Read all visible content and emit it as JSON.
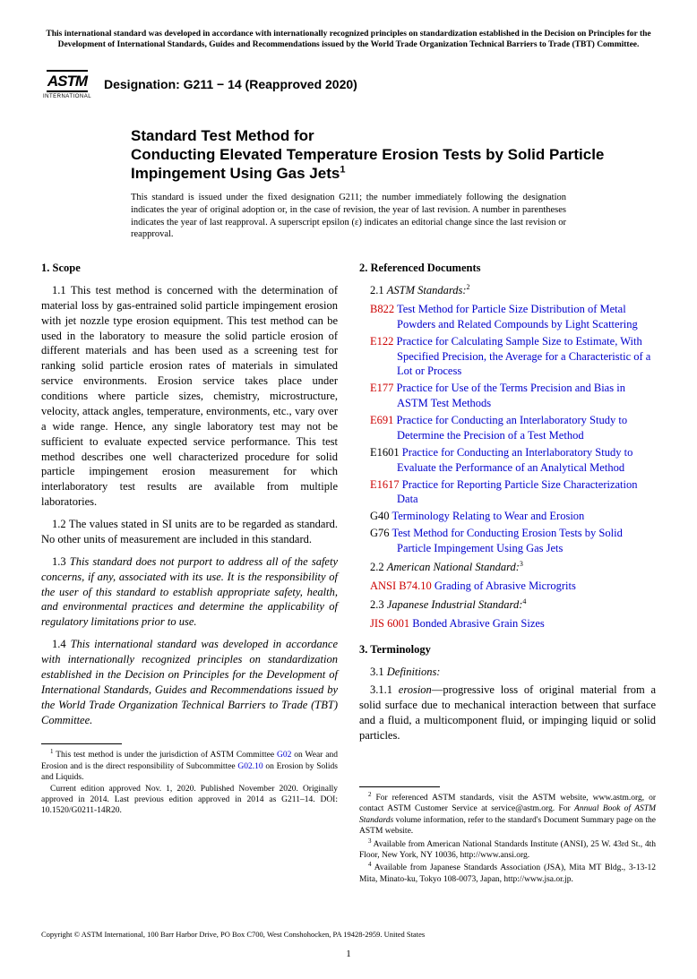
{
  "top_statement": "This international standard was developed in accordance with internationally recognized principles on standardization established in the Decision on Principles for the Development of International Standards, Guides and Recommendations issued by the World Trade Organization Technical Barriers to Trade (TBT) Committee.",
  "logo": {
    "top": "ASTM",
    "bottom": "INTERNATIONAL"
  },
  "designation": "Designation: G211 − 14 (Reapproved 2020)",
  "title_lead": "Standard Test Method for",
  "title_main": "Conducting Elevated Temperature Erosion Tests by Solid Particle Impingement Using Gas Jets",
  "title_super": "1",
  "issue_note": "This standard is issued under the fixed designation G211; the number immediately following the designation indicates the year of original adoption or, in the case of revision, the year of last revision. A number in parentheses indicates the year of last reapproval. A superscript epsilon (ε) indicates an editorial change since the last revision or reapproval.",
  "sections": {
    "scope": {
      "heading": "1. Scope",
      "p1": "1.1 This test method is concerned with the determination of material loss by gas-entrained solid particle impingement erosion with jet nozzle type erosion equipment. This test method can be used in the laboratory to measure the solid particle erosion of different materials and has been used as a screening test for ranking solid particle erosion rates of materials in simulated service environments. Erosion service takes place under conditions where particle sizes, chemistry, microstructure, velocity, attack angles, temperature, environments, etc., vary over a wide range. Hence, any single laboratory test may not be sufficient to evaluate expected service performance. This test method describes one well characterized procedure for solid particle impingement erosion measurement for which interlaboratory test results are available from multiple laboratories.",
      "p2": "1.2 The values stated in SI units are to be regarded as standard. No other units of measurement are included in this standard.",
      "p3": "1.3 This standard does not purport to address all of the safety concerns, if any, associated with its use. It is the responsibility of the user of this standard to establish appropriate safety, health, and environmental practices and determine the applicability of regulatory limitations prior to use.",
      "p4": "1.4 This international standard was developed in accordance with internationally recognized principles on standardization established in the Decision on Principles for the Development of International Standards, Guides and Recommendations issued by the World Trade Organization Technical Barriers to Trade (TBT) Committee."
    },
    "refs": {
      "heading": "2. Referenced Documents",
      "sub21_num": "2.1 ",
      "sub21_label": "ASTM Standards:",
      "sub21_sup": "2",
      "items": [
        {
          "code": "B822",
          "code_color": "red",
          "text": "Test Method for Particle Size Distribution of Metal Powders and Related Compounds by Light Scattering"
        },
        {
          "code": "E122",
          "code_color": "red",
          "text": "Practice for Calculating Sample Size to Estimate, With Specified Precision, the Average for a Characteristic of a Lot or Process"
        },
        {
          "code": "E177",
          "code_color": "red",
          "text": "Practice for Use of the Terms Precision and Bias in ASTM Test Methods"
        },
        {
          "code": "E691",
          "code_color": "red",
          "text": "Practice for Conducting an Interlaboratory Study to Determine the Precision of a Test Method"
        },
        {
          "code": "E1601",
          "code_color": "black",
          "text": "Practice for Conducting an Interlaboratory Study to Evaluate the Performance of an Analytical Method"
        },
        {
          "code": "E1617",
          "code_color": "red",
          "text": "Practice for Reporting Particle Size Characterization Data"
        },
        {
          "code": "G40",
          "code_color": "black",
          "text": "Terminology Relating to Wear and Erosion"
        },
        {
          "code": "G76",
          "code_color": "black",
          "text": "Test Method for Conducting Erosion Tests by Solid Particle Impingement Using Gas Jets"
        }
      ],
      "sub22_num": "2.2 ",
      "sub22_label": "American National Standard:",
      "sub22_sup": "3",
      "ansi": {
        "code": "ANSI B74.10",
        "text": "Grading of Abrasive Microgrits"
      },
      "sub23_num": "2.3 ",
      "sub23_label": "Japanese Industrial Standard:",
      "sub23_sup": "4",
      "jis": {
        "code": "JIS 6001",
        "text": "Bonded Abrasive Grain Sizes"
      }
    },
    "term": {
      "heading": "3. Terminology",
      "sub31_num": "3.1 ",
      "sub31_label": "Definitions:",
      "def_num": "3.1.1 ",
      "def_term": "erosion",
      "def_body": "—progressive loss of original material from a solid surface due to mechanical interaction between that surface and a fluid, a multicomponent fluid, or impinging liquid or solid particles."
    }
  },
  "footnotes": {
    "left1_pre": " This test method is under the jurisdiction of ASTM Committee ",
    "left1_link1": "G02",
    "left1_mid": " on Wear and Erosion and is the direct responsibility of Subcommittee ",
    "left1_link2": "G02.10",
    "left1_post": " on Erosion by Solids and Liquids.",
    "left2": "Current edition approved Nov. 1, 2020. Published November 2020. Originally approved in 2014. Last previous edition approved in 2014 as G211–14. DOI: 10.1520/G0211-14R20.",
    "right2_pre": " For referenced ASTM standards, visit the ASTM website, www.astm.org, or contact ASTM Customer Service at service@astm.org. For ",
    "right2_italic": "Annual Book of ASTM Standards",
    "right2_post": " volume information, refer to the standard's Document Summary page on the ASTM website.",
    "right3": " Available from American National Standards Institute (ANSI), 25 W. 43rd St., 4th Floor, New York, NY 10036, http://www.ansi.org.",
    "right4": " Available from Japanese Standards Association (JSA), Mita MT Bldg., 3-13-12 Mita, Minato-ku, Tokyo 108-0073, Japan, http://www.jsa.or.jp."
  },
  "copyright": "Copyright © ASTM International, 100 Barr Harbor Drive, PO Box C700, West Conshohocken, PA 19428-2959. United States",
  "page_number": "1"
}
